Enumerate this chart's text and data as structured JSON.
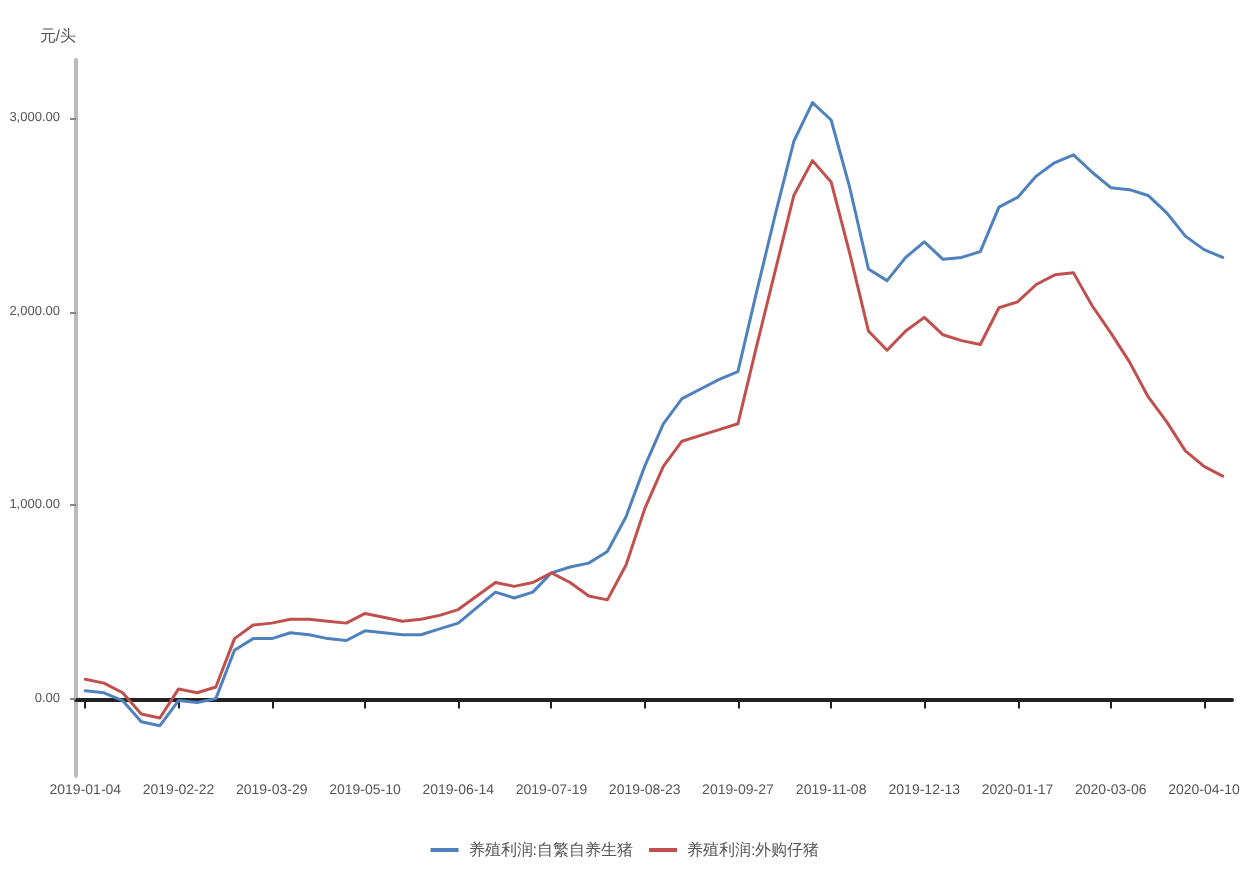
{
  "chart_data": {
    "type": "line",
    "ylabel": "元/头",
    "categories": [
      "2019-01-04",
      null,
      null,
      null,
      null,
      "2019-02-22",
      null,
      null,
      null,
      null,
      "2019-03-29",
      null,
      null,
      null,
      null,
      "2019-05-10",
      null,
      null,
      null,
      null,
      "2019-06-14",
      null,
      null,
      null,
      null,
      "2019-07-19",
      null,
      null,
      null,
      null,
      "2019-08-23",
      null,
      null,
      null,
      null,
      "2019-09-27",
      null,
      null,
      null,
      null,
      "2019-11-08",
      null,
      null,
      null,
      null,
      "2019-12-13",
      null,
      null,
      null,
      null,
      "2020-01-17",
      null,
      null,
      null,
      null,
      "2020-03-06",
      null,
      null,
      null,
      null,
      "2020-04-10",
      null
    ],
    "series": [
      {
        "name": "养殖利润:自繁自养生猪",
        "color": "#4f81bd",
        "values": [
          40,
          30,
          -10,
          -120,
          -140,
          -10,
          -20,
          0,
          250,
          310,
          310,
          340,
          330,
          310,
          300,
          350,
          340,
          330,
          330,
          360,
          390,
          470,
          550,
          520,
          550,
          650,
          680,
          700,
          760,
          940,
          1200,
          1420,
          1550,
          1600,
          1650,
          1690,
          2100,
          2500,
          2880,
          3080,
          2990,
          2640,
          2220,
          2160,
          2280,
          2360,
          2270,
          2280,
          2310,
          2540,
          2590,
          2700,
          2770,
          2810,
          2720,
          2640,
          2630,
          2600,
          2510,
          2390,
          2320,
          2280
        ]
      },
      {
        "name": "养殖利润:外购仔猪",
        "color": "#c0504d",
        "values": [
          100,
          80,
          30,
          -80,
          -100,
          50,
          30,
          60,
          310,
          380,
          390,
          410,
          410,
          400,
          390,
          440,
          420,
          400,
          410,
          430,
          460,
          530,
          600,
          580,
          600,
          650,
          600,
          530,
          510,
          690,
          980,
          1200,
          1330,
          1360,
          1390,
          1420,
          1820,
          2210,
          2600,
          2780,
          2670,
          2300,
          1900,
          1800,
          1900,
          1970,
          1880,
          1850,
          1830,
          2020,
          2050,
          2140,
          2190,
          2200,
          2030,
          1890,
          1740,
          1560,
          1430,
          1280,
          1200,
          1150
        ]
      }
    ],
    "ylim": [
      -400,
      3300
    ],
    "yticks": [
      {
        "value": 0,
        "label": "0.00"
      },
      {
        "value": 1000,
        "label": "1,000.00"
      },
      {
        "value": 2000,
        "label": "2,000.00"
      },
      {
        "value": 3000,
        "label": "3,000.00"
      }
    ],
    "legend": "bottom",
    "marker": "none",
    "line_style": "solid"
  }
}
